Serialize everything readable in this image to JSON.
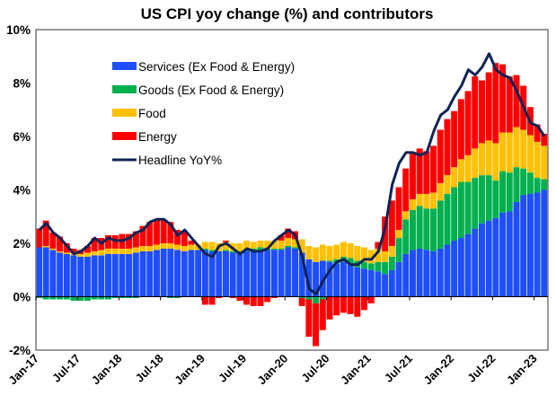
{
  "chart_data": {
    "type": "bar",
    "subtype": "stacked-bar-with-line",
    "title": "US CPI yoy change (%) and contributors",
    "xlabel": "",
    "ylabel": "",
    "ylim": [
      -2,
      10
    ],
    "yticks": [
      "-2%",
      "0%",
      "2%",
      "4%",
      "6%",
      "8%",
      "10%"
    ],
    "ytick_values": [
      -2,
      0,
      2,
      4,
      6,
      8,
      10
    ],
    "xticks": [
      "Jan-17",
      "Jul-17",
      "Jan-18",
      "Jul-18",
      "Jan-19",
      "Jul-19",
      "Jan-20",
      "Jul-20",
      "Jan-21",
      "Jul-21",
      "Jan-22",
      "Jul-22",
      "Jan-23"
    ],
    "xtick_index": [
      0,
      6,
      12,
      18,
      24,
      30,
      36,
      42,
      48,
      54,
      60,
      66,
      72
    ],
    "legend_position": "top-left",
    "grid": false,
    "series": [
      {
        "name": "Services (Ex Food & Energy)",
        "color": "#1F4EFF",
        "kind": "bar",
        "values": [
          1.85,
          1.85,
          1.75,
          1.65,
          1.6,
          1.55,
          1.5,
          1.5,
          1.55,
          1.55,
          1.6,
          1.6,
          1.6,
          1.6,
          1.65,
          1.7,
          1.7,
          1.75,
          1.8,
          1.8,
          1.75,
          1.7,
          1.75,
          1.75,
          1.75,
          1.7,
          1.7,
          1.7,
          1.65,
          1.65,
          1.7,
          1.75,
          1.75,
          1.75,
          1.75,
          1.75,
          1.85,
          1.8,
          1.65,
          1.4,
          1.3,
          1.35,
          1.3,
          1.25,
          1.3,
          1.2,
          1.1,
          1.05,
          1.0,
          0.95,
          0.85,
          1.0,
          1.3,
          1.6,
          1.75,
          1.8,
          1.75,
          1.7,
          1.8,
          1.95,
          2.1,
          2.2,
          2.35,
          2.55,
          2.75,
          2.85,
          2.95,
          3.15,
          3.2,
          3.55,
          3.8,
          3.85,
          3.9,
          4.0
        ]
      },
      {
        "name": "Goods (Ex Food & Energy)",
        "color": "#00B050",
        "kind": "bar",
        "values": [
          -0.05,
          -0.1,
          -0.1,
          -0.1,
          -0.1,
          -0.15,
          -0.15,
          -0.15,
          -0.1,
          -0.1,
          -0.1,
          -0.05,
          -0.05,
          -0.05,
          -0.05,
          0,
          0,
          0,
          0,
          -0.05,
          -0.05,
          0,
          0,
          0,
          0.05,
          0.05,
          0,
          0.05,
          0.05,
          0.05,
          0.1,
          0.05,
          0.1,
          0.05,
          0.05,
          0.05,
          0.05,
          0.05,
          -0.05,
          -0.1,
          -0.25,
          -0.1,
          0.05,
          0.15,
          0.2,
          0.25,
          0.25,
          0.25,
          0.25,
          0.35,
          0.45,
          0.5,
          0.9,
          1.3,
          1.5,
          1.6,
          1.55,
          1.6,
          1.8,
          1.9,
          2.0,
          2.1,
          1.95,
          1.9,
          1.8,
          1.7,
          1.4,
          1.55,
          1.45,
          1.3,
          1.0,
          0.8,
          0.55,
          0.4
        ]
      },
      {
        "name": "Food",
        "color": "#FFC000",
        "kind": "bar",
        "values": [
          0.0,
          0.05,
          0.05,
          0.05,
          0.05,
          0.1,
          0.1,
          0.15,
          0.15,
          0.2,
          0.2,
          0.2,
          0.2,
          0.2,
          0.2,
          0.2,
          0.2,
          0.2,
          0.2,
          0.2,
          0.2,
          0.2,
          0.2,
          0.2,
          0.25,
          0.3,
          0.3,
          0.3,
          0.3,
          0.3,
          0.3,
          0.25,
          0.25,
          0.3,
          0.3,
          0.3,
          0.3,
          0.3,
          0.5,
          0.5,
          0.55,
          0.6,
          0.55,
          0.55,
          0.55,
          0.55,
          0.55,
          0.55,
          0.5,
          0.5,
          0.4,
          0.4,
          0.3,
          0.3,
          0.4,
          0.45,
          0.55,
          0.6,
          0.65,
          0.7,
          0.75,
          0.85,
          1.0,
          1.1,
          1.2,
          1.3,
          1.4,
          1.45,
          1.5,
          1.5,
          1.45,
          1.4,
          1.35,
          1.25
        ]
      },
      {
        "name": "Energy",
        "color": "#FF0000",
        "kind": "bar",
        "values": [
          0.7,
          0.95,
          0.6,
          0.55,
          0.35,
          0.15,
          0.15,
          0.25,
          0.5,
          0.45,
          0.5,
          0.5,
          0.55,
          0.55,
          0.6,
          0.75,
          0.9,
          0.95,
          0.9,
          0.8,
          0.55,
          0.55,
          0.15,
          0.0,
          -0.3,
          -0.3,
          -0.05,
          0.05,
          -0.05,
          -0.15,
          -0.3,
          -0.35,
          -0.35,
          -0.2,
          -0.05,
          0.2,
          0.35,
          0.3,
          -0.3,
          -1.4,
          -1.6,
          -1.15,
          -0.85,
          -0.7,
          -0.6,
          -0.65,
          -0.75,
          -0.5,
          -0.25,
          0.25,
          1.3,
          1.7,
          1.6,
          1.6,
          1.7,
          1.7,
          1.6,
          1.75,
          2.0,
          2.1,
          2.1,
          2.25,
          2.4,
          2.7,
          2.35,
          2.55,
          3.0,
          2.55,
          2.1,
          1.95,
          1.65,
          1.05,
          0.65,
          0.45
        ]
      },
      {
        "name": "Headline YoY%",
        "color": "#0F2355",
        "kind": "line",
        "values": [
          2.5,
          2.75,
          2.4,
          2.2,
          1.9,
          1.6,
          1.7,
          1.9,
          2.2,
          2.0,
          2.2,
          2.1,
          2.1,
          2.2,
          2.4,
          2.5,
          2.8,
          2.9,
          2.9,
          2.7,
          2.3,
          2.5,
          2.2,
          1.9,
          1.6,
          1.5,
          1.9,
          2.0,
          1.8,
          1.6,
          1.8,
          1.7,
          1.7,
          1.8,
          2.1,
          2.3,
          2.5,
          2.3,
          1.5,
          0.3,
          0.1,
          0.6,
          1.0,
          1.3,
          1.4,
          1.2,
          1.2,
          1.4,
          1.4,
          1.7,
          2.6,
          4.2,
          5.0,
          5.4,
          5.4,
          5.3,
          5.4,
          6.2,
          6.8,
          7.0,
          7.5,
          7.9,
          8.5,
          8.3,
          8.6,
          9.1,
          8.5,
          8.3,
          8.2,
          7.7,
          7.1,
          6.5,
          6.4,
          6.0
        ]
      }
    ]
  }
}
